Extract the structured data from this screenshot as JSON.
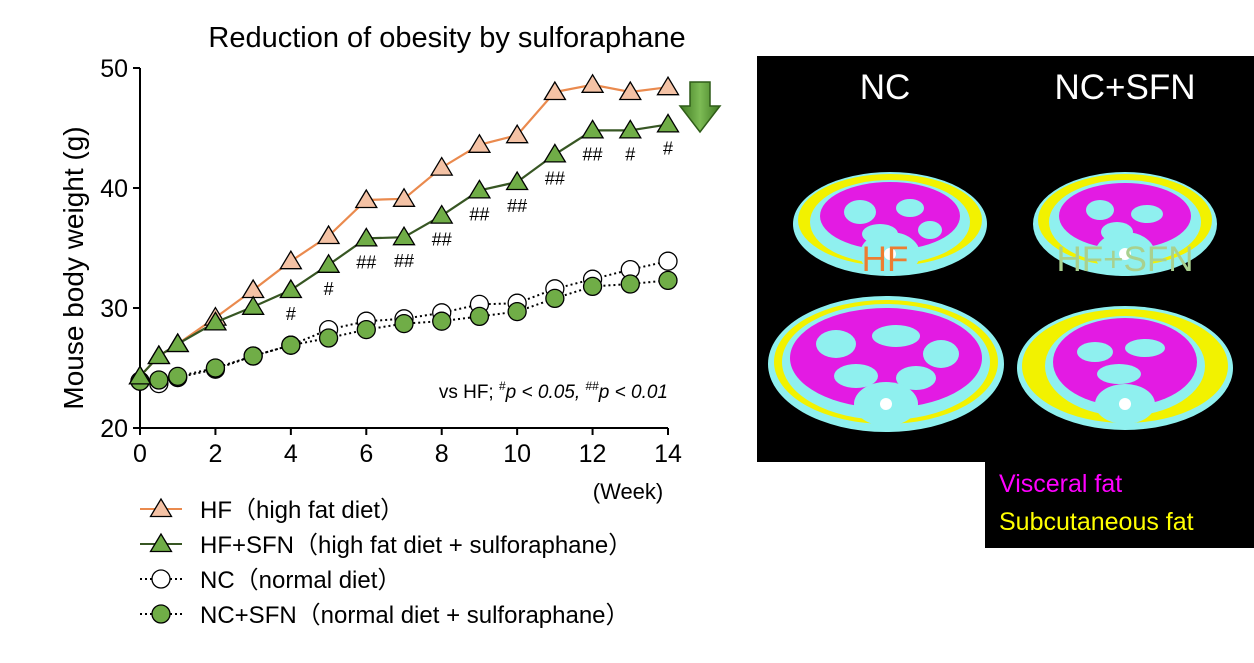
{
  "chart_data": {
    "type": "line",
    "title": "Reduction of obesity by sulforaphane",
    "xlabel": "(Week)",
    "ylabel": "Mouse body weight (g)",
    "xlim": [
      0,
      14
    ],
    "ylim": [
      20,
      50
    ],
    "x_ticks": [
      "0",
      "2",
      "4",
      "6",
      "8",
      "10",
      "12",
      "14"
    ],
    "y_ticks": [
      "20",
      "30",
      "40",
      "50"
    ],
    "grid": false,
    "legend_position": "bottom",
    "significance_note": {
      "prefix": "vs HF; ",
      "p1_sup": "#",
      "p1_text": "p < 0.05, ",
      "p2_sup": "##",
      "p2_text": "p < 0.01"
    },
    "series": [
      {
        "name": "HF（high fat diet）",
        "color": "#f4c2a5",
        "line_color": "#ea8a4e",
        "marker": "triangle",
        "line_style": "solid",
        "x": [
          0,
          0.5,
          1,
          2,
          3,
          4,
          5,
          6,
          7,
          8,
          9,
          10,
          11,
          12,
          13,
          14
        ],
        "y": [
          24.3,
          26.0,
          27.0,
          29.2,
          31.5,
          33.9,
          36.0,
          39.0,
          39.1,
          41.7,
          43.6,
          44.4,
          48.0,
          48.6,
          48.0,
          48.4
        ]
      },
      {
        "name": "HF+SFN（high fat diet + sulforaphane）",
        "color": "#70ad47",
        "line_color": "#375623",
        "marker": "triangle",
        "line_style": "solid",
        "x": [
          0,
          0.5,
          1,
          2,
          3,
          4,
          5,
          6,
          7,
          8,
          9,
          10,
          11,
          12,
          13,
          14
        ],
        "y": [
          24.3,
          26.0,
          27.0,
          28.8,
          30.1,
          31.5,
          33.6,
          35.8,
          35.9,
          37.7,
          39.8,
          40.5,
          42.8,
          44.8,
          44.8,
          45.3
        ],
        "significance": [
          "",
          "",
          "",
          "",
          "",
          "#",
          "#",
          "##",
          "##",
          "##",
          "##",
          "##",
          "##",
          "##",
          "#",
          "#"
        ]
      },
      {
        "name": "NC（normal diet）",
        "color": "#ffffff",
        "line_color": "#000000",
        "marker": "circle",
        "line_style": "dotted",
        "x": [
          0,
          0.5,
          1,
          2,
          3,
          4,
          5,
          6,
          7,
          8,
          9,
          10,
          11,
          12,
          13,
          14
        ],
        "y": [
          23.9,
          23.7,
          24.2,
          24.9,
          26.0,
          26.9,
          28.2,
          28.9,
          29.1,
          29.6,
          30.3,
          30.4,
          31.6,
          32.4,
          33.2,
          33.9
        ]
      },
      {
        "name": "NC+SFN（normal diet + sulforaphane）",
        "color": "#70ad47",
        "line_color": "#000000",
        "marker": "circle",
        "line_style": "dotted",
        "x": [
          0,
          0.5,
          1,
          2,
          3,
          4,
          5,
          6,
          7,
          8,
          9,
          10,
          11,
          12,
          13,
          14
        ],
        "y": [
          23.9,
          24.0,
          24.3,
          25.0,
          26.0,
          26.9,
          27.5,
          28.2,
          28.7,
          28.9,
          29.3,
          29.7,
          30.8,
          31.8,
          32.0,
          32.3
        ]
      }
    ]
  },
  "ct_images": {
    "labels": [
      {
        "text": "NC",
        "color": "#ffffff"
      },
      {
        "text": "NC+SFN",
        "color": "#ffffff"
      },
      {
        "text": "HF",
        "color": "#ed7d31"
      },
      {
        "text": "HF+SFN",
        "color": "#a9d18e"
      }
    ],
    "fat_legend": {
      "visceral": {
        "text": "Visceral fat",
        "color": "#ff00ff"
      },
      "subcutaneous": {
        "text": "Subcutaneous fat",
        "color": "#ffff00"
      }
    },
    "tissue_colors": {
      "visceral": "#e31be3",
      "subcutaneous": "#f2f200",
      "lean": "#8ff0ef",
      "bone": "#ffffff"
    }
  },
  "icons": {
    "down_arrow": "down-arrow-icon"
  }
}
